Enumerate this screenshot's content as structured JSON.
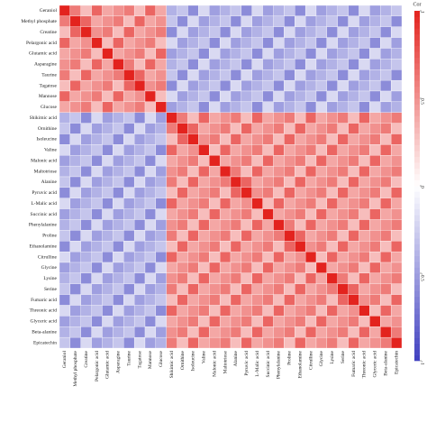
{
  "chart_data": {
    "type": "heatmap",
    "categories": [
      "Geraniol",
      "Methyl phosphate",
      "Creatine",
      "Pelargonic acid",
      "Glutamic acid",
      "Asparagine",
      "Taurine",
      "Tagatose",
      "Mannose",
      "Glucose",
      "Shikimic acid",
      "Ornithine",
      "Isoleucine",
      "Valine",
      "Malonic acid",
      "Maltotriose",
      "Alanine",
      "Pyruvic acid",
      "L-Malic acid",
      "Succinic acid",
      "Phenylalanine",
      "Proline",
      "Ethanolamine",
      "Citrulline",
      "Glycine",
      "Lysine",
      "Serine",
      "Fumaric acid",
      "Threonic acid",
      "Glyceric acid",
      "Beta-alanine",
      "Epicatechin"
    ],
    "matrix": [
      [
        1,
        0.6,
        0.3,
        0.7,
        0.4,
        0.5,
        0.6,
        0.3,
        0.7,
        0.4,
        -0.4,
        -0.3,
        -0.6,
        -0.2,
        -0.5,
        -0.4,
        -0.3,
        -0.6,
        -0.2,
        -0.5,
        -0.4,
        -0.3,
        -0.6,
        -0.2,
        -0.5,
        -0.4,
        -0.3,
        -0.6,
        -0.2,
        -0.5,
        -0.4,
        -0.3
      ],
      [
        0.6,
        1,
        0.7,
        0.4,
        0.5,
        0.6,
        0.3,
        0.7,
        0.4,
        0.5,
        -0.3,
        -0.6,
        -0.2,
        -0.5,
        -0.4,
        -0.3,
        -0.6,
        -0.2,
        -0.5,
        -0.4,
        -0.3,
        -0.6,
        -0.2,
        -0.5,
        -0.4,
        -0.3,
        -0.6,
        -0.2,
        -0.5,
        -0.4,
        -0.3,
        -0.6
      ],
      [
        0.3,
        0.7,
        1,
        0.5,
        0.6,
        0.3,
        0.7,
        0.4,
        0.5,
        0.6,
        -0.6,
        -0.2,
        -0.5,
        -0.4,
        -0.3,
        -0.6,
        -0.2,
        -0.5,
        -0.4,
        -0.3,
        -0.6,
        -0.2,
        -0.5,
        -0.4,
        -0.3,
        -0.6,
        -0.2,
        -0.5,
        -0.4,
        -0.3,
        -0.6,
        -0.2
      ],
      [
        0.7,
        0.4,
        0.5,
        1,
        0.3,
        0.7,
        0.4,
        0.5,
        0.6,
        0.3,
        -0.2,
        -0.5,
        -0.4,
        -0.3,
        -0.6,
        -0.2,
        -0.5,
        -0.4,
        -0.3,
        -0.6,
        -0.2,
        -0.5,
        -0.4,
        -0.3,
        -0.6,
        -0.2,
        -0.5,
        -0.4,
        -0.3,
        -0.6,
        -0.2,
        -0.5
      ],
      [
        0.4,
        0.5,
        0.6,
        0.3,
        1,
        0.4,
        0.5,
        0.6,
        0.3,
        0.7,
        -0.5,
        -0.4,
        -0.3,
        -0.6,
        -0.2,
        -0.5,
        -0.4,
        -0.3,
        -0.6,
        -0.2,
        -0.5,
        -0.4,
        -0.3,
        -0.6,
        -0.2,
        -0.5,
        -0.4,
        -0.3,
        -0.6,
        -0.2,
        -0.5,
        -0.4
      ],
      [
        0.5,
        0.6,
        0.3,
        0.7,
        0.4,
        1,
        0.6,
        0.3,
        0.7,
        0.4,
        -0.4,
        -0.3,
        -0.6,
        -0.2,
        -0.5,
        -0.4,
        -0.3,
        -0.6,
        -0.2,
        -0.5,
        -0.4,
        -0.3,
        -0.6,
        -0.2,
        -0.5,
        -0.4,
        -0.3,
        -0.6,
        -0.2,
        -0.5,
        -0.4,
        -0.3
      ],
      [
        0.6,
        0.3,
        0.7,
        0.4,
        0.5,
        0.6,
        1,
        0.7,
        0.4,
        0.5,
        -0.3,
        -0.6,
        -0.2,
        -0.5,
        -0.4,
        -0.3,
        -0.6,
        -0.2,
        -0.5,
        -0.4,
        -0.3,
        -0.6,
        -0.2,
        -0.5,
        -0.4,
        -0.3,
        -0.6,
        -0.2,
        -0.5,
        -0.4,
        -0.3,
        -0.6
      ],
      [
        0.3,
        0.7,
        0.4,
        0.5,
        0.6,
        0.3,
        0.7,
        1,
        0.5,
        0.6,
        -0.6,
        -0.2,
        -0.5,
        -0.4,
        -0.3,
        -0.6,
        -0.2,
        -0.5,
        -0.4,
        -0.3,
        -0.6,
        -0.2,
        -0.5,
        -0.4,
        -0.3,
        -0.6,
        -0.2,
        -0.5,
        -0.4,
        -0.3,
        -0.6,
        -0.2
      ],
      [
        0.7,
        0.4,
        0.5,
        0.6,
        0.3,
        0.7,
        0.4,
        0.5,
        1,
        0.3,
        -0.2,
        -0.5,
        -0.4,
        -0.3,
        -0.6,
        -0.2,
        -0.5,
        -0.4,
        -0.3,
        -0.6,
        -0.2,
        -0.5,
        -0.4,
        -0.3,
        -0.6,
        -0.2,
        -0.5,
        -0.4,
        -0.3,
        -0.6,
        -0.2,
        -0.5
      ],
      [
        0.4,
        0.5,
        0.6,
        0.3,
        0.7,
        0.4,
        0.5,
        0.6,
        0.3,
        1,
        -0.5,
        -0.4,
        -0.3,
        -0.6,
        -0.2,
        -0.5,
        -0.4,
        -0.3,
        -0.6,
        -0.2,
        -0.5,
        -0.4,
        -0.3,
        -0.6,
        -0.2,
        -0.5,
        -0.4,
        -0.3,
        -0.6,
        -0.2,
        -0.5,
        -0.4
      ],
      [
        -0.4,
        -0.3,
        -0.6,
        -0.2,
        -0.5,
        -0.4,
        -0.3,
        -0.6,
        -0.2,
        -0.5,
        1,
        0.6,
        0.3,
        0.7,
        0.4,
        0.5,
        0.6,
        0.3,
        0.7,
        0.4,
        0.5,
        0.6,
        0.3,
        0.7,
        0.4,
        0.5,
        0.6,
        0.3,
        0.7,
        0.4,
        0.5,
        0.6
      ],
      [
        -0.3,
        -0.6,
        -0.2,
        -0.5,
        -0.4,
        -0.3,
        -0.6,
        -0.2,
        -0.5,
        -0.4,
        0.6,
        1,
        0.7,
        0.4,
        0.5,
        0.6,
        0.3,
        0.7,
        0.4,
        0.5,
        0.6,
        0.3,
        0.7,
        0.4,
        0.5,
        0.6,
        0.3,
        0.7,
        0.4,
        0.5,
        0.6,
        0.3
      ],
      [
        -0.6,
        -0.2,
        -0.5,
        -0.4,
        -0.3,
        -0.6,
        -0.2,
        -0.5,
        -0.4,
        -0.3,
        0.3,
        0.7,
        1,
        0.5,
        0.6,
        0.3,
        0.7,
        0.4,
        0.5,
        0.6,
        0.3,
        0.7,
        0.4,
        0.5,
        0.6,
        0.3,
        0.7,
        0.4,
        0.5,
        0.6,
        0.3,
        0.7
      ],
      [
        -0.2,
        -0.5,
        -0.4,
        -0.3,
        -0.6,
        -0.2,
        -0.5,
        -0.4,
        -0.3,
        -0.6,
        0.7,
        0.4,
        0.5,
        1,
        0.3,
        0.7,
        0.4,
        0.5,
        0.6,
        0.3,
        0.7,
        0.4,
        0.5,
        0.6,
        0.3,
        0.7,
        0.4,
        0.5,
        0.6,
        0.3,
        0.7,
        0.4
      ],
      [
        -0.5,
        -0.4,
        -0.3,
        -0.6,
        -0.2,
        -0.5,
        -0.4,
        -0.3,
        -0.6,
        -0.2,
        0.4,
        0.5,
        0.6,
        0.3,
        1,
        0.4,
        0.5,
        0.6,
        0.3,
        0.7,
        0.4,
        0.5,
        0.6,
        0.3,
        0.7,
        0.4,
        0.5,
        0.6,
        0.3,
        0.7,
        0.4,
        0.5
      ],
      [
        -0.4,
        -0.3,
        -0.6,
        -0.2,
        -0.5,
        -0.4,
        -0.3,
        -0.6,
        -0.2,
        -0.5,
        0.5,
        0.6,
        0.3,
        0.7,
        0.4,
        1,
        0.6,
        0.3,
        0.7,
        0.4,
        0.5,
        0.6,
        0.3,
        0.7,
        0.4,
        0.5,
        0.6,
        0.3,
        0.7,
        0.4,
        0.5,
        0.6
      ],
      [
        -0.3,
        -0.6,
        -0.2,
        -0.5,
        -0.4,
        -0.3,
        -0.6,
        -0.2,
        -0.5,
        -0.4,
        0.6,
        0.3,
        0.7,
        0.4,
        0.5,
        0.6,
        1,
        0.7,
        0.4,
        0.5,
        0.6,
        0.3,
        0.7,
        0.4,
        0.5,
        0.6,
        0.3,
        0.7,
        0.4,
        0.5,
        0.6,
        0.3
      ],
      [
        -0.6,
        -0.2,
        -0.5,
        -0.4,
        -0.3,
        -0.6,
        -0.2,
        -0.5,
        -0.4,
        -0.3,
        0.3,
        0.7,
        0.4,
        0.5,
        0.6,
        0.3,
        0.7,
        1,
        0.5,
        0.6,
        0.3,
        0.7,
        0.4,
        0.5,
        0.6,
        0.3,
        0.7,
        0.4,
        0.5,
        0.6,
        0.3,
        0.7
      ],
      [
        -0.2,
        -0.5,
        -0.4,
        -0.3,
        -0.6,
        -0.2,
        -0.5,
        -0.4,
        -0.3,
        -0.6,
        0.7,
        0.4,
        0.5,
        0.6,
        0.3,
        0.7,
        0.4,
        0.5,
        1,
        0.3,
        0.7,
        0.4,
        0.5,
        0.6,
        0.3,
        0.7,
        0.4,
        0.5,
        0.6,
        0.3,
        0.7,
        0.4
      ],
      [
        -0.5,
        -0.4,
        -0.3,
        -0.6,
        -0.2,
        -0.5,
        -0.4,
        -0.3,
        -0.6,
        -0.2,
        0.4,
        0.5,
        0.6,
        0.3,
        0.7,
        0.4,
        0.5,
        0.6,
        0.3,
        1,
        0.4,
        0.5,
        0.6,
        0.3,
        0.7,
        0.4,
        0.5,
        0.6,
        0.3,
        0.7,
        0.4,
        0.5
      ],
      [
        -0.4,
        -0.3,
        -0.6,
        -0.2,
        -0.5,
        -0.4,
        -0.3,
        -0.6,
        -0.2,
        -0.5,
        0.5,
        0.6,
        0.3,
        0.7,
        0.4,
        0.5,
        0.6,
        0.3,
        0.7,
        0.4,
        1,
        0.6,
        0.3,
        0.7,
        0.4,
        0.5,
        0.6,
        0.3,
        0.7,
        0.4,
        0.5,
        0.6
      ],
      [
        -0.3,
        -0.6,
        -0.2,
        -0.5,
        -0.4,
        -0.3,
        -0.6,
        -0.2,
        -0.5,
        -0.4,
        0.6,
        0.3,
        0.7,
        0.4,
        0.5,
        0.6,
        0.3,
        0.7,
        0.4,
        0.5,
        0.6,
        1,
        0.7,
        0.4,
        0.5,
        0.6,
        0.3,
        0.7,
        0.4,
        0.5,
        0.6,
        0.3
      ],
      [
        -0.6,
        -0.2,
        -0.5,
        -0.4,
        -0.3,
        -0.6,
        -0.2,
        -0.5,
        -0.4,
        -0.3,
        0.3,
        0.7,
        0.4,
        0.5,
        0.6,
        0.3,
        0.7,
        0.4,
        0.5,
        0.6,
        0.3,
        0.7,
        1,
        0.5,
        0.6,
        0.3,
        0.7,
        0.4,
        0.5,
        0.6,
        0.3,
        0.7
      ],
      [
        -0.2,
        -0.5,
        -0.4,
        -0.3,
        -0.6,
        -0.2,
        -0.5,
        -0.4,
        -0.3,
        -0.6,
        0.7,
        0.4,
        0.5,
        0.6,
        0.3,
        0.7,
        0.4,
        0.5,
        0.6,
        0.3,
        0.7,
        0.4,
        0.5,
        1,
        0.3,
        0.7,
        0.4,
        0.5,
        0.6,
        0.3,
        0.7,
        0.4
      ],
      [
        -0.5,
        -0.4,
        -0.3,
        -0.6,
        -0.2,
        -0.5,
        -0.4,
        -0.3,
        -0.6,
        -0.2,
        0.4,
        0.5,
        0.6,
        0.3,
        0.7,
        0.4,
        0.5,
        0.6,
        0.3,
        0.7,
        0.4,
        0.5,
        0.6,
        0.3,
        1,
        0.4,
        0.5,
        0.6,
        0.3,
        0.7,
        0.4,
        0.5
      ],
      [
        -0.4,
        -0.3,
        -0.6,
        -0.2,
        -0.5,
        -0.4,
        -0.3,
        -0.6,
        -0.2,
        -0.5,
        0.5,
        0.6,
        0.3,
        0.7,
        0.4,
        0.5,
        0.6,
        0.3,
        0.7,
        0.4,
        0.5,
        0.6,
        0.3,
        0.7,
        0.4,
        1,
        0.6,
        0.3,
        0.7,
        0.4,
        0.5,
        0.6
      ],
      [
        -0.3,
        -0.6,
        -0.2,
        -0.5,
        -0.4,
        -0.3,
        -0.6,
        -0.2,
        -0.5,
        -0.4,
        0.6,
        0.3,
        0.7,
        0.4,
        0.5,
        0.6,
        0.3,
        0.7,
        0.4,
        0.5,
        0.6,
        0.3,
        0.7,
        0.4,
        0.5,
        0.6,
        1,
        0.7,
        0.4,
        0.5,
        0.6,
        0.3
      ],
      [
        -0.6,
        -0.2,
        -0.5,
        -0.4,
        -0.3,
        -0.6,
        -0.2,
        -0.5,
        -0.4,
        -0.3,
        0.3,
        0.7,
        0.4,
        0.5,
        0.6,
        0.3,
        0.7,
        0.4,
        0.5,
        0.6,
        0.3,
        0.7,
        0.4,
        0.5,
        0.6,
        0.3,
        0.7,
        1,
        0.5,
        0.6,
        0.3,
        0.7
      ],
      [
        -0.2,
        -0.5,
        -0.4,
        -0.3,
        -0.6,
        -0.2,
        -0.5,
        -0.4,
        -0.3,
        -0.6,
        0.7,
        0.4,
        0.5,
        0.6,
        0.3,
        0.7,
        0.4,
        0.5,
        0.6,
        0.3,
        0.7,
        0.4,
        0.5,
        0.6,
        0.3,
        0.7,
        0.4,
        0.5,
        1,
        0.3,
        0.7,
        0.4
      ],
      [
        -0.5,
        -0.4,
        -0.3,
        -0.6,
        -0.2,
        -0.5,
        -0.4,
        -0.3,
        -0.6,
        -0.2,
        0.4,
        0.5,
        0.6,
        0.3,
        0.7,
        0.4,
        0.5,
        0.6,
        0.3,
        0.7,
        0.4,
        0.5,
        0.6,
        0.3,
        0.7,
        0.4,
        0.5,
        0.6,
        0.3,
        1,
        0.4,
        0.5
      ],
      [
        -0.4,
        -0.3,
        -0.6,
        -0.2,
        -0.5,
        -0.4,
        -0.3,
        -0.6,
        -0.2,
        -0.5,
        0.5,
        0.6,
        0.3,
        0.7,
        0.4,
        0.5,
        0.6,
        0.3,
        0.7,
        0.4,
        0.5,
        0.6,
        0.3,
        0.7,
        0.4,
        0.5,
        0.6,
        0.3,
        0.7,
        0.4,
        1,
        0.6
      ],
      [
        -0.3,
        -0.6,
        -0.2,
        -0.5,
        -0.4,
        -0.3,
        -0.6,
        -0.2,
        -0.5,
        -0.4,
        0.6,
        0.3,
        0.7,
        0.4,
        0.5,
        0.6,
        0.3,
        0.7,
        0.4,
        0.5,
        0.6,
        0.3,
        0.7,
        0.4,
        0.5,
        0.6,
        0.3,
        0.7,
        0.4,
        0.5,
        0.6,
        1
      ]
    ],
    "colorbar": {
      "title": "Cor",
      "lim": [
        -1,
        1
      ],
      "ticks": [
        1,
        0.5,
        0,
        -0.5,
        -1
      ],
      "low_color": "#3f3fc0",
      "mid_color": "#ffffff",
      "high_color": "#e3231e"
    }
  }
}
